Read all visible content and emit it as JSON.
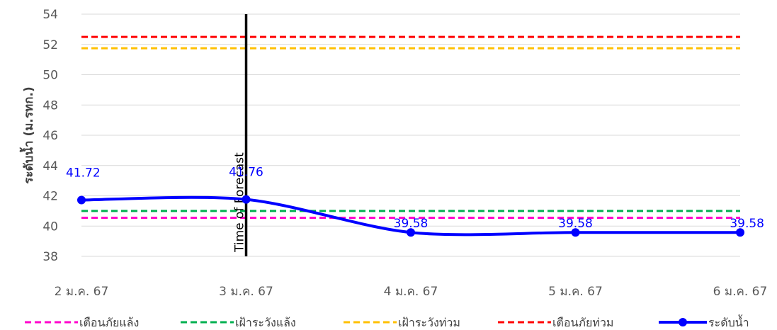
{
  "chart_data": {
    "type": "line",
    "ylabel": "ระดับน้ำ (ม.รทก.)",
    "categories": [
      "2 ม.ค. 67",
      "3 ม.ค. 67",
      "4 ม.ค. 67",
      "5 ม.ค. 67",
      "6 ม.ค. 67"
    ],
    "ylim": [
      38,
      54
    ],
    "yticks": [
      38,
      40,
      42,
      44,
      46,
      48,
      50,
      52,
      54
    ],
    "grid": "horizontal",
    "legend_position": "bottom",
    "series": [
      {
        "name": "เตือนภัยแล้ง",
        "style": "dashed",
        "color": "#ff00cc",
        "values": [
          40.55,
          40.55,
          40.55,
          40.55,
          40.55
        ]
      },
      {
        "name": "เฝ้าระวังแล้ง",
        "style": "dashed",
        "color": "#00b050",
        "values": [
          41.0,
          41.0,
          41.0,
          41.0,
          41.0
        ]
      },
      {
        "name": "เฝ้าระวังท่วม",
        "style": "dashed",
        "color": "#ffc000",
        "values": [
          51.75,
          51.75,
          51.75,
          51.75,
          51.75
        ]
      },
      {
        "name": "เตือนภัยท่วม",
        "style": "dashed",
        "color": "#ff0000",
        "values": [
          52.5,
          52.5,
          52.5,
          52.5,
          52.5
        ]
      },
      {
        "name": "ระดับน้ำ",
        "style": "solid-markers",
        "color": "#0000ff",
        "values": [
          41.72,
          41.76,
          39.58,
          39.58,
          39.58
        ],
        "data_labels": [
          "41.72",
          "41.76",
          "39.58",
          "39.58",
          "39.58"
        ]
      }
    ],
    "vertical_marker": {
      "label": "Time of Forecast",
      "category": "3 ม.ค. 67",
      "color": "#000000"
    }
  }
}
